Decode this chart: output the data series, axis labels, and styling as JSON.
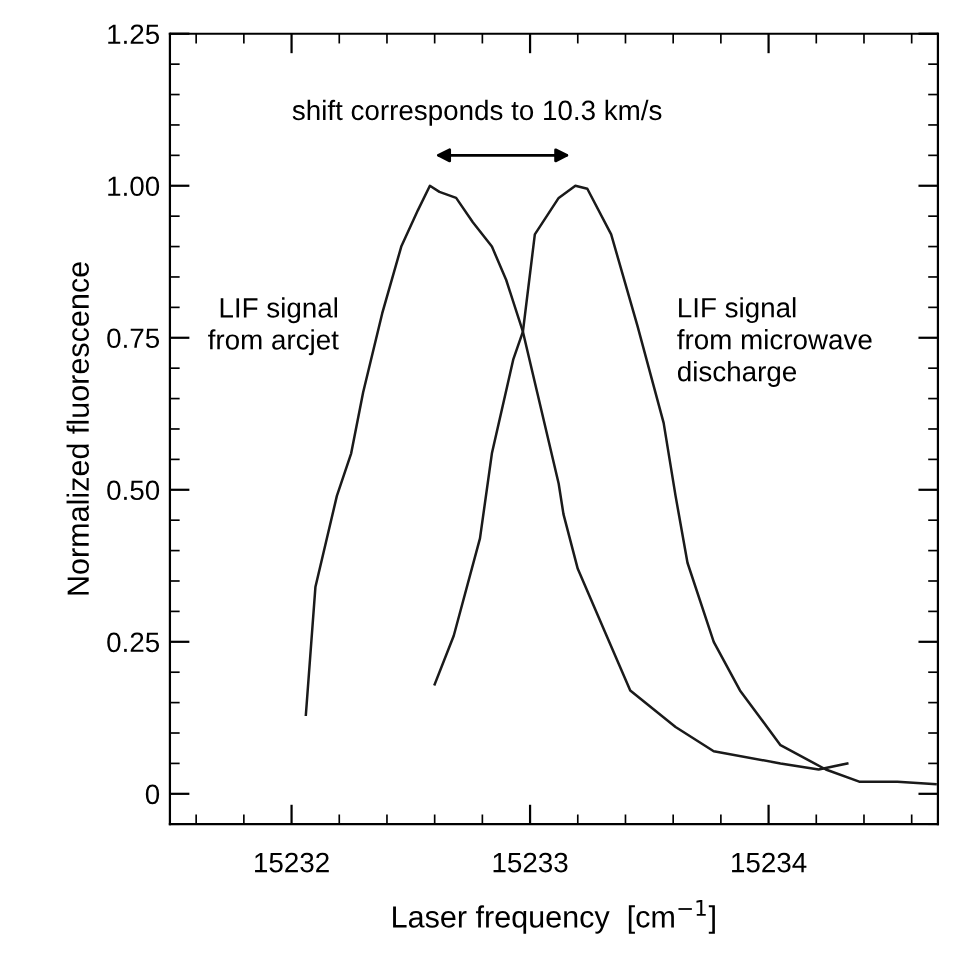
{
  "chart_data": {
    "type": "line",
    "xlabel": "Laser frequency  [cm$^{−1}$]",
    "ylabel": "Normalized fluorescence",
    "xlim": [
      15231.49,
      15234.71
    ],
    "ylim": [
      -0.05,
      1.25
    ],
    "xticks": [
      15232,
      15233,
      15234
    ],
    "yticks": [
      {
        "value": 0,
        "label": "0"
      },
      0.25,
      {
        "value": 0.5,
        "label": "0.50"
      },
      0.75,
      {
        "value": 1,
        "label": "1.00"
      },
      1.25
    ],
    "grid": false,
    "legend": false,
    "marker": "none",
    "line_style": "solid",
    "series": [
      {
        "color": "#1a1a1a",
        "x": [
          15232.06,
          15232.1,
          15232.19,
          15232.25,
          15232.3,
          15232.38,
          15232.46,
          15232.53,
          15232.58,
          15232.62,
          15232.69,
          15232.76,
          15232.84,
          15232.9,
          15232.97,
          15233.03,
          15233.12,
          15233.14,
          15233.2,
          15233.31,
          15233.42,
          15233.61,
          15233.77,
          15234.05,
          15234.21,
          15234.33
        ],
        "values": [
          0.13,
          0.34,
          0.49,
          0.56,
          0.66,
          0.79,
          0.9,
          0.96,
          1.0,
          0.99,
          0.98,
          0.94,
          0.9,
          0.845,
          0.76,
          0.66,
          0.51,
          0.46,
          0.37,
          0.27,
          0.17,
          0.11,
          0.07,
          0.05,
          0.04,
          0.05
        ]
      },
      {
        "color": "#1a1a1a",
        "x": [
          15232.6,
          15232.68,
          15232.79,
          15232.84,
          15232.93,
          15232.97,
          15233.02,
          15233.12,
          15233.19,
          15233.24,
          15233.34,
          15233.45,
          15233.56,
          15233.61,
          15233.66,
          15233.77,
          15233.88,
          15234.05,
          15234.24,
          15234.38,
          15234.54,
          15234.7
        ],
        "values": [
          0.18,
          0.26,
          0.42,
          0.56,
          0.715,
          0.76,
          0.92,
          0.98,
          1.0,
          0.995,
          0.92,
          0.77,
          0.61,
          0.49,
          0.38,
          0.25,
          0.17,
          0.08,
          0.04,
          0.02,
          0.02,
          0.016
        ]
      }
    ],
    "annotations": [
      "shift corresponds to 10.3 km/s",
      "LIF signal\nfrom arcjet",
      "LIF signal\nfrom microwave\ndischarge"
    ]
  }
}
